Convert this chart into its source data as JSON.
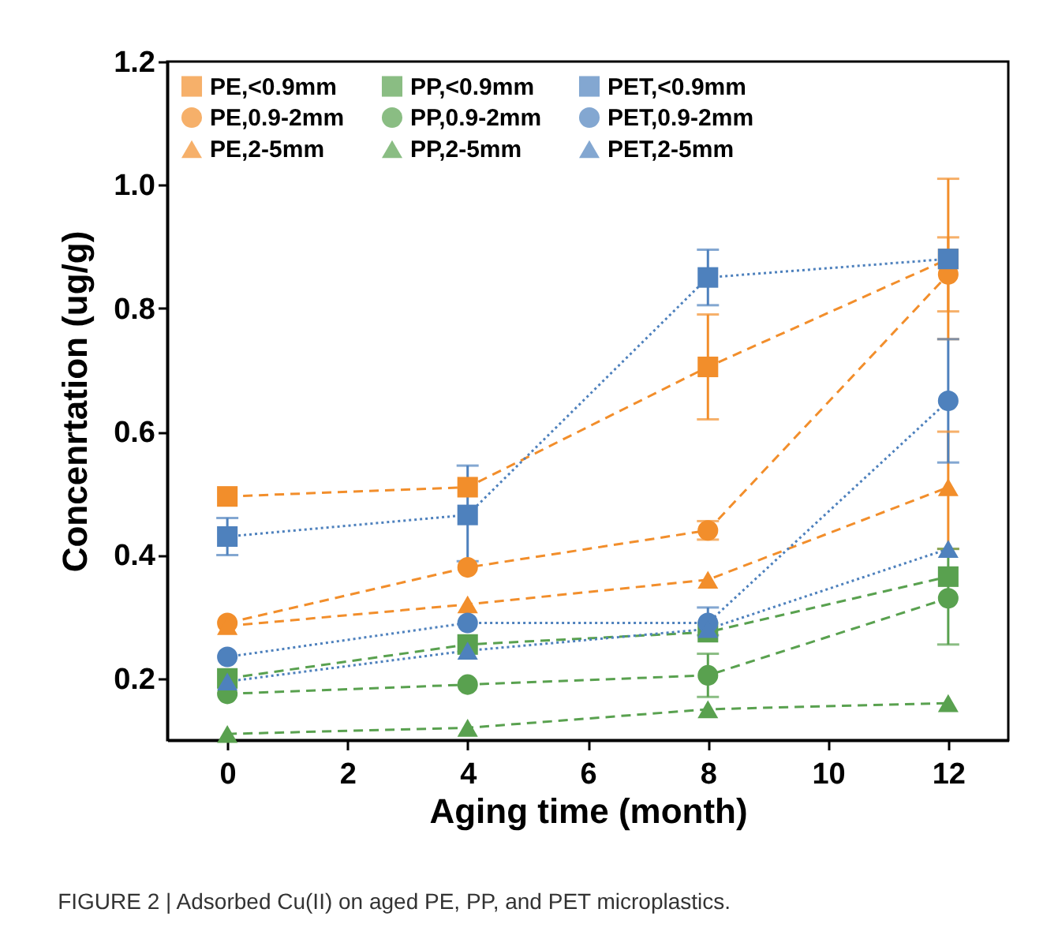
{
  "chart_data": {
    "type": "line",
    "xlabel": "Aging time (month)",
    "ylabel": "Concenrtation (ug/g)",
    "x": [
      0,
      4,
      8,
      12
    ],
    "xlim": [
      -1,
      13
    ],
    "xticks": [
      0,
      2,
      4,
      6,
      8,
      10,
      12
    ],
    "ylim": [
      0.1,
      1.2
    ],
    "yticks": [
      0.2,
      0.4,
      0.6,
      0.8,
      {
        "value": 1,
        "label": "1.0"
      },
      1.2
    ],
    "legend": "top",
    "grid": false,
    "annotations": [
      "FIGURE 2 | Adsorbed Cu(II) on aged PE, PP, and PET microplastics."
    ],
    "series": [
      {
        "name": "PE,<0.9mm",
        "color": "#f28e2b",
        "marker": "square",
        "line_style": "dashed",
        "values": [
          0.495,
          0.51,
          0.705,
          0.88
        ],
        "errors": [
          null,
          null,
          [
            0.62,
            0.79
          ],
          [
            0.75,
            1.01
          ]
        ]
      },
      {
        "name": "PE,0.9-2mm",
        "color": "#f28e2b",
        "marker": "circle",
        "line_style": "dashed",
        "values": [
          0.29,
          0.38,
          0.44,
          0.855
        ],
        "errors": [
          null,
          null,
          [
            0.425,
            0.455
          ],
          [
            0.795,
            0.915
          ]
        ]
      },
      {
        "name": "PE,2-5mm",
        "color": "#f28e2b",
        "marker": "triangle",
        "line_style": "dashed",
        "values": [
          0.285,
          0.32,
          0.36,
          0.51
        ],
        "errors": [
          null,
          null,
          null,
          [
            0.41,
            0.6
          ]
        ]
      },
      {
        "name": "PP,<0.9mm",
        "color": "#59a14f",
        "marker": "square",
        "line_style": "dashed",
        "values": [
          0.2,
          0.255,
          0.275,
          0.365
        ]
      },
      {
        "name": "PP,0.9-2mm",
        "color": "#59a14f",
        "marker": "circle",
        "line_style": "dashed",
        "values": [
          0.175,
          0.19,
          0.205,
          0.33
        ],
        "errors": [
          null,
          null,
          [
            0.17,
            0.24
          ],
          [
            0.255,
            0.41
          ]
        ]
      },
      {
        "name": "PP,2-5mm",
        "color": "#59a14f",
        "marker": "triangle",
        "line_style": "dashed",
        "values": [
          0.11,
          0.12,
          0.15,
          0.16
        ]
      },
      {
        "name": "PET,<0.9mm",
        "color": "#4e81bd",
        "marker": "square",
        "line_style": "dotted",
        "values": [
          0.43,
          0.465,
          0.85,
          0.88
        ],
        "errors": [
          [
            0.4,
            0.46
          ],
          [
            0.39,
            0.545
          ],
          [
            0.805,
            0.895
          ],
          null
        ]
      },
      {
        "name": "PET,0.9-2mm",
        "color": "#4e81bd",
        "marker": "circle",
        "line_style": "dotted",
        "values": [
          0.235,
          0.29,
          0.29,
          0.65
        ],
        "errors": [
          null,
          null,
          [
            0.27,
            0.315
          ],
          [
            0.55,
            0.75
          ]
        ]
      },
      {
        "name": "PET,2-5mm",
        "color": "#4e81bd",
        "marker": "triangle",
        "line_style": "dotted",
        "values": [
          0.195,
          0.245,
          0.28,
          0.41
        ]
      }
    ]
  }
}
